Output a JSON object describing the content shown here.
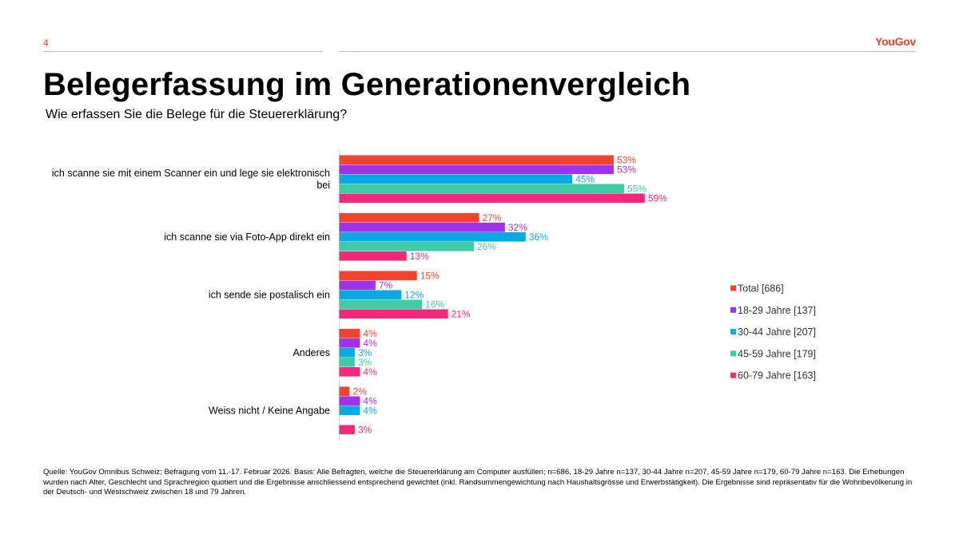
{
  "header": {
    "page_number": "4",
    "logo": "YouGov",
    "title": "Belegerfassung im Generationenvergleich",
    "subtitle": "Wie erfassen Sie die Belege für die Steuererklärung?"
  },
  "chart_data": {
    "type": "bar",
    "orientation": "horizontal",
    "categories": [
      [
        "ich scanne sie mit einem Scanner ein und lege sie elektronisch",
        "bei"
      ],
      [
        "ich scanne sie via Foto-App direkt ein"
      ],
      [
        "ich sende sie postalisch ein"
      ],
      [
        "Anderes"
      ],
      [
        "Weiss nicht / Keine Angabe"
      ]
    ],
    "series": [
      {
        "name": "Total [686]",
        "color": "#f2432f",
        "values": [
          53,
          27,
          15,
          4,
          2
        ],
        "labels": [
          "53%",
          "27%",
          "15%",
          "4%",
          "2%"
        ]
      },
      {
        "name": "18-29 Jahre [137]",
        "color": "#9f33e8",
        "values": [
          53,
          32,
          7,
          4,
          4
        ],
        "labels": [
          "53%",
          "32%",
          "7%",
          "4%",
          "4%"
        ]
      },
      {
        "name": "30-44 Jahre [207]",
        "color": "#09a9e6",
        "values": [
          45,
          36,
          12,
          3,
          4
        ],
        "labels": [
          "45%",
          "36%",
          "12%",
          "3%",
          "4%"
        ]
      },
      {
        "name": "45-59 Jahre [179]",
        "color": "#3dcca6",
        "values": [
          55,
          26,
          16,
          3,
          0
        ],
        "labels": [
          "55%",
          "26%",
          "16%",
          "3%",
          ""
        ]
      },
      {
        "name": "60-79 Jahre [163]",
        "color": "#f2287a",
        "values": [
          59,
          13,
          21,
          4,
          3
        ],
        "labels": [
          "59%",
          "13%",
          "21%",
          "4%",
          "3%"
        ]
      }
    ],
    "xlim": [
      0,
      100
    ],
    "grid": false,
    "legend_position": "right"
  },
  "footnote": "Quelle: YouGov Omnibus Schweiz; Befragung vom 11.-17. Februar 2026. Basis: Alle Befragten, welche die Steuererklärung am Computer ausfüllen; n=686, 18-29 Jahre n=137, 30-44 Jahre n=207, 45-59 Jahre n=179, 60-79 Jahre n=163. Die Erhebungen wurden nach Alter, Geschlecht und Sprachregion quotiert und die Ergebnisse anschliessend entsprechend gewichtet (inkl. Randsummengewichtung nach Haushaltsgrösse und Erwerbstätigkeit). Die Ergebnisse sind repräsentativ für die Wohnbevölkerung in der Deutsch- und Westschweiz zwischen 18 und 79 Jahren."
}
